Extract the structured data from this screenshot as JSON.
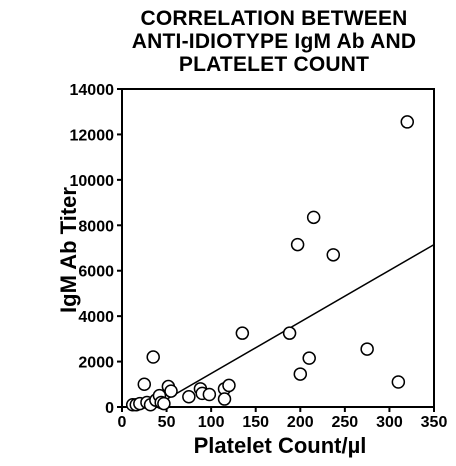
{
  "chart_data": {
    "type": "scatter",
    "title_lines": [
      "CORRELATION BETWEEN",
      "ANTI-IDIOTYPE IgM Ab AND",
      "PLATELET COUNT"
    ],
    "xlabel": "Platelet Count/µl",
    "ylabel": "IgM Ab Titer",
    "xlim": [
      0,
      350
    ],
    "ylim": [
      0,
      14000
    ],
    "xticks": [
      0,
      50,
      100,
      150,
      200,
      250,
      300,
      350
    ],
    "yticks": [
      0,
      2000,
      4000,
      6000,
      8000,
      10000,
      12000,
      14000
    ],
    "grid": false,
    "points": [
      {
        "x": 12,
        "y": 100
      },
      {
        "x": 16,
        "y": 100
      },
      {
        "x": 20,
        "y": 150
      },
      {
        "x": 25,
        "y": 1000
      },
      {
        "x": 28,
        "y": 200
      },
      {
        "x": 32,
        "y": 100
      },
      {
        "x": 35,
        "y": 2200
      },
      {
        "x": 38,
        "y": 300
      },
      {
        "x": 42,
        "y": 500
      },
      {
        "x": 44,
        "y": 200
      },
      {
        "x": 47,
        "y": 150
      },
      {
        "x": 52,
        "y": 900
      },
      {
        "x": 55,
        "y": 700
      },
      {
        "x": 75,
        "y": 450
      },
      {
        "x": 88,
        "y": 800
      },
      {
        "x": 90,
        "y": 600
      },
      {
        "x": 98,
        "y": 550
      },
      {
        "x": 115,
        "y": 800
      },
      {
        "x": 120,
        "y": 950
      },
      {
        "x": 115,
        "y": 350
      },
      {
        "x": 135,
        "y": 3250
      },
      {
        "x": 188,
        "y": 3250
      },
      {
        "x": 197,
        "y": 7150
      },
      {
        "x": 200,
        "y": 1450
      },
      {
        "x": 210,
        "y": 2150
      },
      {
        "x": 215,
        "y": 8350
      },
      {
        "x": 237,
        "y": 6700
      },
      {
        "x": 275,
        "y": 2550
      },
      {
        "x": 310,
        "y": 1100
      },
      {
        "x": 320,
        "y": 12550
      }
    ],
    "regression_line": {
      "x": [
        35,
        350
      ],
      "y": [
        0,
        7150
      ]
    }
  }
}
